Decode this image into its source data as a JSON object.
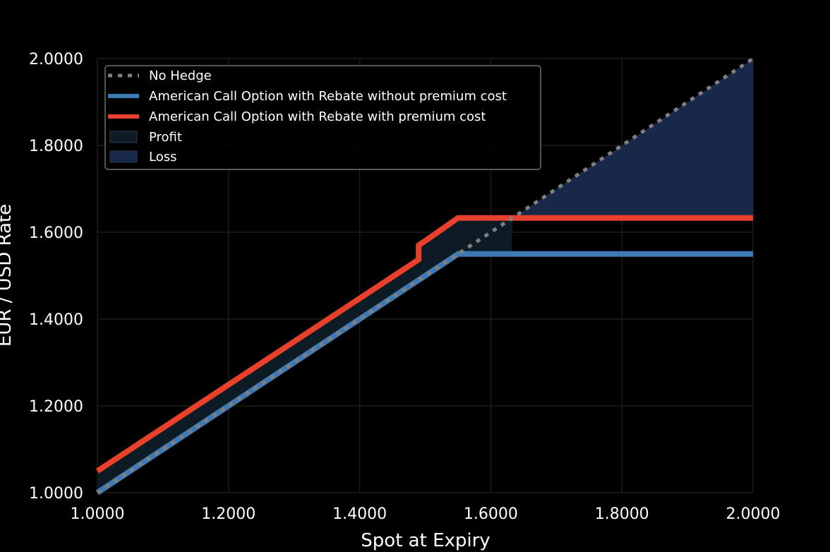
{
  "chart_data": {
    "type": "line",
    "title": "",
    "xlabel": "Spot at Expiry",
    "ylabel": "EUR / USD Rate",
    "xlim": [
      1.0,
      2.0
    ],
    "ylim": [
      1.0,
      2.0
    ],
    "x_ticks": [
      "1.0000",
      "1.2000",
      "1.4000",
      "1.6000",
      "1.8000",
      "2.0000"
    ],
    "y_ticks": [
      "1.0000",
      "1.2000",
      "1.4000",
      "1.6000",
      "1.8000",
      "2.0000"
    ],
    "x_tick_values": [
      1.0,
      1.2,
      1.4,
      1.6,
      1.8,
      2.0
    ],
    "y_tick_values": [
      1.0,
      1.2,
      1.4,
      1.6,
      1.8,
      2.0
    ],
    "grid": true,
    "legend_position": "top-left",
    "background": "#000000",
    "series": [
      {
        "name": "No Hedge",
        "style": "dotted",
        "color": "#7f7f7f",
        "x": [
          1.0,
          2.0
        ],
        "y": [
          1.0,
          2.0
        ]
      },
      {
        "name": "American Call Option with Rebate without premium cost",
        "style": "solid",
        "color": "#3d79b3",
        "x": [
          1.0,
          1.55,
          2.0
        ],
        "y": [
          1.0,
          1.55,
          1.55
        ]
      },
      {
        "name": "American Call Option with Rebate with premium cost",
        "style": "solid",
        "color": "#e8402a",
        "x": [
          1.0,
          1.49,
          1.49,
          1.5,
          1.55,
          2.0
        ],
        "y": [
          1.05,
          1.537,
          1.57,
          1.58,
          1.633,
          1.633
        ]
      }
    ],
    "areas": [
      {
        "name": "Profit",
        "color": "#0d1c24"
      },
      {
        "name": "Loss",
        "color": "#172848"
      }
    ]
  }
}
